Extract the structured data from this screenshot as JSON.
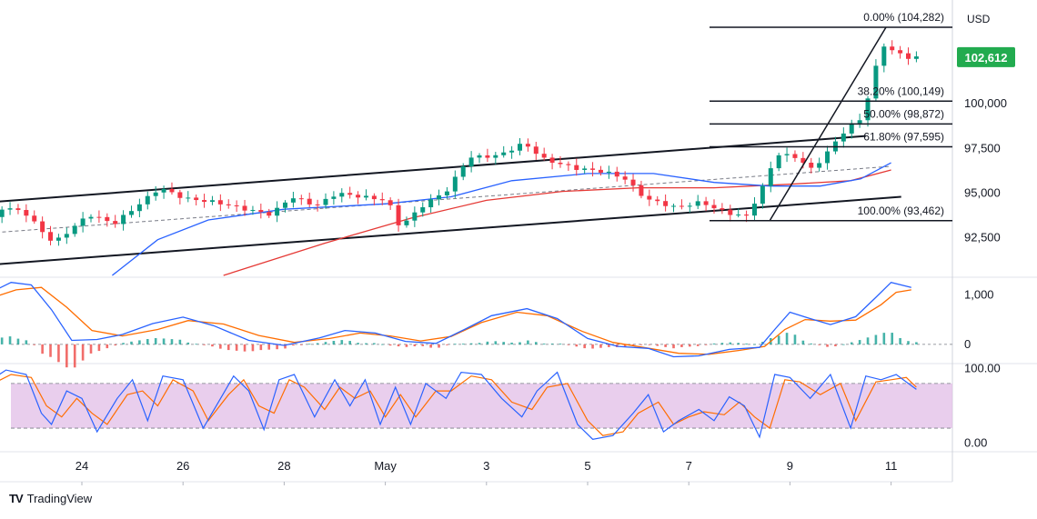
{
  "brand": {
    "logo_text": "TV",
    "name": "TradingView"
  },
  "chart_data": {
    "type": "candlestick",
    "currency": "USD",
    "last_price": "102,612",
    "last_price_value": 102612,
    "colors": {
      "up": "#089981",
      "down": "#f23645",
      "ma_fast": "#2962ff",
      "ma_slow": "#e53935",
      "macd": "#2962ff",
      "signal": "#ff6d00",
      "rsi_band": "#e1bee7",
      "price_tag": "#22ab4f"
    },
    "x_axis": {
      "labels": [
        "24",
        "26",
        "28",
        "May",
        "3",
        "5",
        "7",
        "9",
        "11"
      ]
    },
    "price_axis": {
      "ticks": [
        "100,000",
        "97,500",
        "95,000",
        "92,500"
      ],
      "tick_values": [
        100000,
        97500,
        95000,
        92500
      ],
      "ylim": [
        90400,
        105400
      ]
    },
    "fibonacci": [
      {
        "label": "0.00% (104,282)",
        "value": 104282
      },
      {
        "label": "38.20% (100,149)",
        "value": 100149
      },
      {
        "label": "50.00% (98,872)",
        "value": 98872
      },
      {
        "label": "61.80% (97,595)",
        "value": 97595
      },
      {
        "label": "100.00% (93,462)",
        "value": 93462
      }
    ],
    "price_series": [
      {
        "d": 22.1,
        "v": 91200
      },
      {
        "d": 22.5,
        "v": 94200
      },
      {
        "d": 23.0,
        "v": 94000
      },
      {
        "d": 23.6,
        "v": 92200
      },
      {
        "d": 24.3,
        "v": 93800
      },
      {
        "d": 24.8,
        "v": 93300
      },
      {
        "d": 25.3,
        "v": 94400
      },
      {
        "d": 25.7,
        "v": 95300
      },
      {
        "d": 26.2,
        "v": 94700
      },
      {
        "d": 26.8,
        "v": 94500
      },
      {
        "d": 27.4,
        "v": 94100
      },
      {
        "d": 27.9,
        "v": 93800
      },
      {
        "d": 28.3,
        "v": 94800
      },
      {
        "d": 28.8,
        "v": 94300
      },
      {
        "d": 29.2,
        "v": 95000
      },
      {
        "d": 29.7,
        "v": 94800
      },
      {
        "d": 30.2,
        "v": 94600
      },
      {
        "d": 30.45,
        "v": 93100
      },
      {
        "d": 30.9,
        "v": 94300
      },
      {
        "d": 31.4,
        "v": 95200
      },
      {
        "d": 31.8,
        "v": 97000
      },
      {
        "d": 32.4,
        "v": 97100
      },
      {
        "d": 32.9,
        "v": 97800
      },
      {
        "d": 33.3,
        "v": 96900
      },
      {
        "d": 33.9,
        "v": 96400
      },
      {
        "d": 34.5,
        "v": 96200
      },
      {
        "d": 34.9,
        "v": 95800
      },
      {
        "d": 35.3,
        "v": 94700
      },
      {
        "d": 35.9,
        "v": 94200
      },
      {
        "d": 36.4,
        "v": 94500
      },
      {
        "d": 36.9,
        "v": 93900
      },
      {
        "d": 37.3,
        "v": 93700
      },
      {
        "d": 37.6,
        "v": 95200
      },
      {
        "d": 37.9,
        "v": 97200
      },
      {
        "d": 38.3,
        "v": 97000
      },
      {
        "d": 38.6,
        "v": 96300
      },
      {
        "d": 38.9,
        "v": 97300
      },
      {
        "d": 39.3,
        "v": 98700
      },
      {
        "d": 39.6,
        "v": 99200
      },
      {
        "d": 39.8,
        "v": 101500
      },
      {
        "d": 40.0,
        "v": 103300
      },
      {
        "d": 40.3,
        "v": 102800
      },
      {
        "d": 40.5,
        "v": 102600
      }
    ],
    "ma_fast_series": [
      {
        "d": 24.6,
        "v": 90400
      },
      {
        "d": 25.5,
        "v": 92400
      },
      {
        "d": 26.5,
        "v": 93500
      },
      {
        "d": 28.0,
        "v": 94100
      },
      {
        "d": 30.0,
        "v": 94400
      },
      {
        "d": 31.3,
        "v": 94800
      },
      {
        "d": 32.5,
        "v": 95700
      },
      {
        "d": 34.0,
        "v": 96100
      },
      {
        "d": 35.3,
        "v": 96100
      },
      {
        "d": 36.5,
        "v": 95600
      },
      {
        "d": 37.6,
        "v": 95400
      },
      {
        "d": 38.6,
        "v": 95400
      },
      {
        "d": 39.4,
        "v": 95800
      },
      {
        "d": 40.0,
        "v": 96700
      }
    ],
    "ma_slow_series": [
      {
        "d": 26.8,
        "v": 90400
      },
      {
        "d": 28.8,
        "v": 92200
      },
      {
        "d": 30.5,
        "v": 93600
      },
      {
        "d": 32.0,
        "v": 94600
      },
      {
        "d": 33.5,
        "v": 95100
      },
      {
        "d": 35.0,
        "v": 95300
      },
      {
        "d": 36.5,
        "v": 95300
      },
      {
        "d": 38.0,
        "v": 95500
      },
      {
        "d": 39.2,
        "v": 95700
      },
      {
        "d": 40.0,
        "v": 96300
      }
    ],
    "channel": {
      "upper": [
        {
          "d": 22.2,
          "v": 94500
        },
        {
          "d": 39.5,
          "v": 98200
        }
      ],
      "lower": [
        {
          "d": 22.2,
          "v": 91000
        },
        {
          "d": 40.2,
          "v": 94800
        }
      ],
      "mid": [
        {
          "d": 22.3,
          "v": 92800
        },
        {
          "d": 40.0,
          "v": 96500
        }
      ]
    },
    "fib_trend": [
      {
        "d": 37.6,
        "v": 93462
      },
      {
        "d": 39.9,
        "v": 104282
      }
    ],
    "macd_axis": {
      "ticks": [
        "1,000",
        "0"
      ],
      "tick_values": [
        1000,
        0
      ],
      "ylim": [
        -350,
        1300
      ]
    },
    "macd": [
      {
        "d": 22.1,
        "v": 1000
      },
      {
        "d": 22.6,
        "v": 1250
      },
      {
        "d": 23.0,
        "v": 1200
      },
      {
        "d": 23.4,
        "v": 700
      },
      {
        "d": 23.8,
        "v": 80
      },
      {
        "d": 24.3,
        "v": 100
      },
      {
        "d": 24.8,
        "v": 200
      },
      {
        "d": 25.4,
        "v": 420
      },
      {
        "d": 26.0,
        "v": 550
      },
      {
        "d": 26.6,
        "v": 380
      },
      {
        "d": 27.3,
        "v": 80
      },
      {
        "d": 28.0,
        "v": -20
      },
      {
        "d": 28.7,
        "v": 130
      },
      {
        "d": 29.2,
        "v": 280
      },
      {
        "d": 29.8,
        "v": 230
      },
      {
        "d": 30.4,
        "v": 60
      },
      {
        "d": 31.0,
        "v": 20
      },
      {
        "d": 31.6,
        "v": 320
      },
      {
        "d": 32.1,
        "v": 580
      },
      {
        "d": 32.8,
        "v": 720
      },
      {
        "d": 33.4,
        "v": 520
      },
      {
        "d": 34.0,
        "v": 120
      },
      {
        "d": 34.6,
        "v": -40
      },
      {
        "d": 35.2,
        "v": -80
      },
      {
        "d": 35.7,
        "v": -250
      },
      {
        "d": 36.2,
        "v": -230
      },
      {
        "d": 36.8,
        "v": -100
      },
      {
        "d": 37.4,
        "v": -60
      },
      {
        "d": 37.7,
        "v": 300
      },
      {
        "d": 38.0,
        "v": 650
      },
      {
        "d": 38.4,
        "v": 520
      },
      {
        "d": 38.8,
        "v": 400
      },
      {
        "d": 39.3,
        "v": 560
      },
      {
        "d": 39.7,
        "v": 950
      },
      {
        "d": 40.0,
        "v": 1250
      },
      {
        "d": 40.4,
        "v": 1150
      }
    ],
    "signal": [
      {
        "d": 22.1,
        "v": 900
      },
      {
        "d": 22.7,
        "v": 1100
      },
      {
        "d": 23.2,
        "v": 1150
      },
      {
        "d": 23.7,
        "v": 750
      },
      {
        "d": 24.2,
        "v": 280
      },
      {
        "d": 24.8,
        "v": 170
      },
      {
        "d": 25.5,
        "v": 300
      },
      {
        "d": 26.1,
        "v": 480
      },
      {
        "d": 26.8,
        "v": 410
      },
      {
        "d": 27.5,
        "v": 180
      },
      {
        "d": 28.2,
        "v": 40
      },
      {
        "d": 28.9,
        "v": 120
      },
      {
        "d": 29.5,
        "v": 230
      },
      {
        "d": 30.1,
        "v": 170
      },
      {
        "d": 30.7,
        "v": 70
      },
      {
        "d": 31.3,
        "v": 160
      },
      {
        "d": 31.9,
        "v": 440
      },
      {
        "d": 32.6,
        "v": 650
      },
      {
        "d": 33.2,
        "v": 580
      },
      {
        "d": 33.9,
        "v": 260
      },
      {
        "d": 34.5,
        "v": 40
      },
      {
        "d": 35.1,
        "v": -60
      },
      {
        "d": 35.8,
        "v": -180
      },
      {
        "d": 36.4,
        "v": -200
      },
      {
        "d": 37.0,
        "v": -120
      },
      {
        "d": 37.5,
        "v": -40
      },
      {
        "d": 37.9,
        "v": 300
      },
      {
        "d": 38.3,
        "v": 500
      },
      {
        "d": 38.8,
        "v": 470
      },
      {
        "d": 39.3,
        "v": 490
      },
      {
        "d": 39.8,
        "v": 800
      },
      {
        "d": 40.1,
        "v": 1050
      },
      {
        "d": 40.4,
        "v": 1100
      }
    ],
    "rsi_axis": {
      "ticks": [
        "100.00",
        "0.00"
      ],
      "tick_values": [
        100,
        0
      ],
      "ylim": [
        -8,
        103
      ],
      "band": [
        20,
        80
      ]
    },
    "stoch_k": [
      {
        "d": 22.1,
        "v": 80
      },
      {
        "d": 22.5,
        "v": 98
      },
      {
        "d": 22.9,
        "v": 92
      },
      {
        "d": 23.2,
        "v": 40
      },
      {
        "d": 23.4,
        "v": 25
      },
      {
        "d": 23.7,
        "v": 70
      },
      {
        "d": 24.0,
        "v": 60
      },
      {
        "d": 24.3,
        "v": 15
      },
      {
        "d": 24.7,
        "v": 60
      },
      {
        "d": 25.0,
        "v": 85
      },
      {
        "d": 25.3,
        "v": 30
      },
      {
        "d": 25.6,
        "v": 90
      },
      {
        "d": 26.0,
        "v": 85
      },
      {
        "d": 26.4,
        "v": 20
      },
      {
        "d": 26.7,
        "v": 55
      },
      {
        "d": 27.0,
        "v": 90
      },
      {
        "d": 27.3,
        "v": 70
      },
      {
        "d": 27.6,
        "v": 18
      },
      {
        "d": 27.9,
        "v": 85
      },
      {
        "d": 28.2,
        "v": 92
      },
      {
        "d": 28.6,
        "v": 35
      },
      {
        "d": 29.0,
        "v": 85
      },
      {
        "d": 29.3,
        "v": 50
      },
      {
        "d": 29.6,
        "v": 85
      },
      {
        "d": 29.9,
        "v": 25
      },
      {
        "d": 30.2,
        "v": 75
      },
      {
        "d": 30.5,
        "v": 25
      },
      {
        "d": 30.8,
        "v": 80
      },
      {
        "d": 31.2,
        "v": 60
      },
      {
        "d": 31.5,
        "v": 95
      },
      {
        "d": 31.9,
        "v": 92
      },
      {
        "d": 32.3,
        "v": 60
      },
      {
        "d": 32.7,
        "v": 35
      },
      {
        "d": 33.0,
        "v": 70
      },
      {
        "d": 33.4,
        "v": 95
      },
      {
        "d": 33.8,
        "v": 25
      },
      {
        "d": 34.1,
        "v": 5
      },
      {
        "d": 34.5,
        "v": 10
      },
      {
        "d": 34.9,
        "v": 40
      },
      {
        "d": 35.2,
        "v": 65
      },
      {
        "d": 35.5,
        "v": 15
      },
      {
        "d": 35.8,
        "v": 30
      },
      {
        "d": 36.2,
        "v": 45
      },
      {
        "d": 36.5,
        "v": 30
      },
      {
        "d": 36.8,
        "v": 62
      },
      {
        "d": 37.1,
        "v": 50
      },
      {
        "d": 37.4,
        "v": 8
      },
      {
        "d": 37.7,
        "v": 92
      },
      {
        "d": 38.0,
        "v": 88
      },
      {
        "d": 38.4,
        "v": 60
      },
      {
        "d": 38.8,
        "v": 92
      },
      {
        "d": 39.2,
        "v": 20
      },
      {
        "d": 39.5,
        "v": 90
      },
      {
        "d": 39.8,
        "v": 85
      },
      {
        "d": 40.1,
        "v": 92
      },
      {
        "d": 40.5,
        "v": 72
      }
    ],
    "stoch_d": [
      {
        "d": 22.1,
        "v": 75
      },
      {
        "d": 22.6,
        "v": 92
      },
      {
        "d": 23.0,
        "v": 88
      },
      {
        "d": 23.3,
        "v": 50
      },
      {
        "d": 23.6,
        "v": 35
      },
      {
        "d": 23.9,
        "v": 60
      },
      {
        "d": 24.2,
        "v": 40
      },
      {
        "d": 24.5,
        "v": 25
      },
      {
        "d": 24.9,
        "v": 65
      },
      {
        "d": 25.2,
        "v": 70
      },
      {
        "d": 25.5,
        "v": 50
      },
      {
        "d": 25.8,
        "v": 85
      },
      {
        "d": 26.2,
        "v": 70
      },
      {
        "d": 26.5,
        "v": 30
      },
      {
        "d": 26.9,
        "v": 65
      },
      {
        "d": 27.2,
        "v": 85
      },
      {
        "d": 27.5,
        "v": 50
      },
      {
        "d": 27.8,
        "v": 40
      },
      {
        "d": 28.1,
        "v": 85
      },
      {
        "d": 28.4,
        "v": 75
      },
      {
        "d": 28.8,
        "v": 45
      },
      {
        "d": 29.1,
        "v": 75
      },
      {
        "d": 29.4,
        "v": 60
      },
      {
        "d": 29.7,
        "v": 70
      },
      {
        "d": 30.0,
        "v": 35
      },
      {
        "d": 30.3,
        "v": 65
      },
      {
        "d": 30.6,
        "v": 35
      },
      {
        "d": 31.0,
        "v": 70
      },
      {
        "d": 31.3,
        "v": 70
      },
      {
        "d": 31.7,
        "v": 90
      },
      {
        "d": 32.1,
        "v": 85
      },
      {
        "d": 32.5,
        "v": 55
      },
      {
        "d": 32.9,
        "v": 45
      },
      {
        "d": 33.2,
        "v": 75
      },
      {
        "d": 33.6,
        "v": 80
      },
      {
        "d": 34.0,
        "v": 30
      },
      {
        "d": 34.3,
        "v": 10
      },
      {
        "d": 34.7,
        "v": 15
      },
      {
        "d": 35.0,
        "v": 40
      },
      {
        "d": 35.4,
        "v": 55
      },
      {
        "d": 35.7,
        "v": 25
      },
      {
        "d": 36.0,
        "v": 35
      },
      {
        "d": 36.3,
        "v": 42
      },
      {
        "d": 36.7,
        "v": 38
      },
      {
        "d": 37.0,
        "v": 55
      },
      {
        "d": 37.3,
        "v": 35
      },
      {
        "d": 37.6,
        "v": 20
      },
      {
        "d": 37.9,
        "v": 85
      },
      {
        "d": 38.2,
        "v": 82
      },
      {
        "d": 38.6,
        "v": 65
      },
      {
        "d": 39.0,
        "v": 80
      },
      {
        "d": 39.3,
        "v": 30
      },
      {
        "d": 39.7,
        "v": 82
      },
      {
        "d": 40.0,
        "v": 85
      },
      {
        "d": 40.3,
        "v": 88
      },
      {
        "d": 40.5,
        "v": 75
      }
    ]
  }
}
